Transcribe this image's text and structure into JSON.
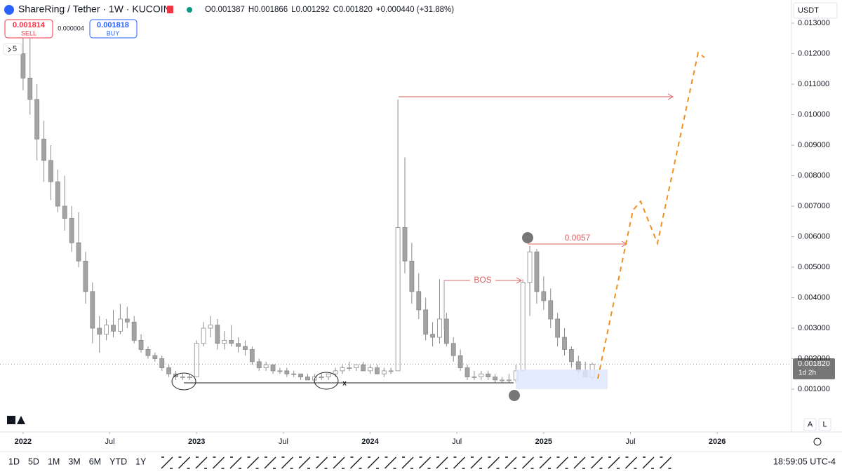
{
  "header": {
    "symbol": "ShareRing / Tether · 1W · KUCOIN",
    "legend": [
      {
        "label": "O",
        "value": "0.001387"
      },
      {
        "label": "H",
        "value": "0.001866"
      },
      {
        "label": "L",
        "value": "0.001292"
      },
      {
        "label": "C",
        "value": "0.001820"
      },
      {
        "label": "+0.000440 (+31.88%)"
      }
    ],
    "sell": {
      "price": "0.001814",
      "label": "SELL"
    },
    "spread": "0.000004",
    "buy": {
      "price": "0.001818",
      "label": "BUY"
    },
    "count": "5"
  },
  "currency": "USDT",
  "price_tag": {
    "price": "0.001820",
    "countdown": "1d 2h"
  },
  "axis_buttons": [
    "A",
    "L"
  ],
  "timeframes": [
    "1D",
    "5D",
    "1M",
    "3M",
    "6M",
    "YTD",
    "1Y"
  ],
  "clock": "18:59:05 UTC-4",
  "annotations": {
    "bos": "BOS",
    "target": "0.0057",
    "cross": "x"
  },
  "chart_data": {
    "type": "candlestick",
    "up_color": "#ffffff",
    "down_color": "#a3a3a3",
    "wick_color": "#8a8a8a",
    "x": [
      2022.0,
      2022.04,
      2022.08,
      2022.12,
      2022.16,
      2022.2,
      2022.24,
      2022.28,
      2022.32,
      2022.36,
      2022.4,
      2022.44,
      2022.48,
      2022.52,
      2022.56,
      2022.6,
      2022.64,
      2022.68,
      2022.72,
      2022.76,
      2022.8,
      2022.84,
      2022.88,
      2022.92,
      2022.96,
      2023.0,
      2023.04,
      2023.08,
      2023.12,
      2023.16,
      2023.2,
      2023.24,
      2023.28,
      2023.32,
      2023.36,
      2023.4,
      2023.44,
      2023.48,
      2023.52,
      2023.56,
      2023.6,
      2023.64,
      2023.68,
      2023.72,
      2023.76,
      2023.8,
      2023.84,
      2023.88,
      2023.92,
      2023.96,
      2024.0,
      2024.04,
      2024.08,
      2024.12,
      2024.16,
      2024.2,
      2024.24,
      2024.28,
      2024.32,
      2024.36,
      2024.4,
      2024.44,
      2024.48,
      2024.52,
      2024.56,
      2024.6,
      2024.64,
      2024.68,
      2024.72,
      2024.76,
      2024.8,
      2024.84,
      2024.88,
      2024.92,
      2024.96,
      2025.0,
      2025.04,
      2025.08,
      2025.12,
      2025.16,
      2025.2,
      2025.24,
      2025.28
    ],
    "open": [
      0.012,
      0.0112,
      0.0105,
      0.0092,
      0.0085,
      0.0078,
      0.007,
      0.0066,
      0.0058,
      0.0052,
      0.0042,
      0.003,
      0.0028,
      0.0031,
      0.0029,
      0.0033,
      0.0032,
      0.0026,
      0.0023,
      0.0021,
      0.002,
      0.0017,
      0.0015,
      0.0014,
      0.0014,
      0.0014,
      0.0025,
      0.003,
      0.0031,
      0.0025,
      0.0026,
      0.0025,
      0.0024,
      0.0023,
      0.0019,
      0.0017,
      0.0018,
      0.0016,
      0.0016,
      0.0015,
      0.0015,
      0.0014,
      0.0013,
      0.0014,
      0.0014,
      0.0015,
      0.0016,
      0.0017,
      0.0017,
      0.0018,
      0.0016,
      0.0017,
      0.0015,
      0.0016,
      0.0016,
      0.0063,
      0.0052,
      0.0042,
      0.0036,
      0.0028,
      0.0027,
      0.0033,
      0.0025,
      0.0021,
      0.0017,
      0.0014,
      0.0014,
      0.0015,
      0.0014,
      0.0013,
      0.0013,
      0.0013,
      0.0016,
      0.0045,
      0.0055,
      0.0042,
      0.0039,
      0.0033,
      0.0027,
      0.0023,
      0.0019,
      0.0016,
      0.001387
    ],
    "high": [
      0.0128,
      0.0125,
      0.011,
      0.0098,
      0.009,
      0.0082,
      0.008,
      0.007,
      0.0068,
      0.0055,
      0.0045,
      0.0034,
      0.0033,
      0.0036,
      0.0038,
      0.0037,
      0.0034,
      0.0028,
      0.0024,
      0.0022,
      0.0021,
      0.0018,
      0.0016,
      0.0015,
      0.0015,
      0.0026,
      0.0032,
      0.0034,
      0.0033,
      0.0029,
      0.0031,
      0.0027,
      0.0026,
      0.0024,
      0.002,
      0.0019,
      0.0018,
      0.0017,
      0.0017,
      0.0016,
      0.0015,
      0.0015,
      0.0015,
      0.0015,
      0.0015,
      0.0017,
      0.0018,
      0.0019,
      0.0018,
      0.0019,
      0.0018,
      0.0018,
      0.0017,
      0.0017,
      0.0105,
      0.0086,
      0.0058,
      0.0048,
      0.004,
      0.0032,
      0.0046,
      0.0035,
      0.0027,
      0.0023,
      0.0018,
      0.0016,
      0.0016,
      0.0016,
      0.0015,
      0.0014,
      0.0015,
      0.0018,
      0.0046,
      0.0057,
      0.0056,
      0.0047,
      0.0043,
      0.0035,
      0.003,
      0.0024,
      0.0021,
      0.0019,
      0.001866
    ],
    "low": [
      0.0108,
      0.01,
      0.0085,
      0.0078,
      0.0072,
      0.0068,
      0.0062,
      0.0055,
      0.005,
      0.0038,
      0.0025,
      0.0022,
      0.0026,
      0.0027,
      0.0028,
      0.003,
      0.0025,
      0.0022,
      0.002,
      0.0019,
      0.0016,
      0.0014,
      0.0013,
      0.0013,
      0.0013,
      0.0014,
      0.0024,
      0.0027,
      0.0023,
      0.0023,
      0.0024,
      0.0022,
      0.0021,
      0.0018,
      0.0016,
      0.0016,
      0.0015,
      0.0015,
      0.0014,
      0.0014,
      0.0013,
      0.0013,
      0.0012,
      0.0013,
      0.0013,
      0.0014,
      0.0015,
      0.0016,
      0.0016,
      0.0016,
      0.0015,
      0.0015,
      0.0014,
      0.0015,
      0.0016,
      0.0048,
      0.0038,
      0.0033,
      0.0026,
      0.0024,
      0.0025,
      0.0024,
      0.0019,
      0.0016,
      0.0013,
      0.0013,
      0.0013,
      0.0013,
      0.0012,
      0.0012,
      0.0012,
      0.0012,
      0.0016,
      0.0034,
      0.0038,
      0.0036,
      0.003,
      0.0024,
      0.0021,
      0.0017,
      0.0015,
      0.0014,
      0.001292
    ],
    "close": [
      0.0112,
      0.0105,
      0.0092,
      0.0085,
      0.0078,
      0.007,
      0.0066,
      0.0058,
      0.0052,
      0.0042,
      0.003,
      0.0028,
      0.0031,
      0.0029,
      0.0033,
      0.0032,
      0.0026,
      0.0023,
      0.0021,
      0.002,
      0.0017,
      0.0015,
      0.0014,
      0.0014,
      0.0014,
      0.0025,
      0.003,
      0.0031,
      0.0025,
      0.0026,
      0.0025,
      0.0024,
      0.0023,
      0.0019,
      0.0017,
      0.0018,
      0.0016,
      0.0016,
      0.0015,
      0.0015,
      0.0014,
      0.0013,
      0.0014,
      0.0014,
      0.0015,
      0.0016,
      0.0017,
      0.0017,
      0.0018,
      0.0016,
      0.0017,
      0.0015,
      0.0016,
      0.0016,
      0.0063,
      0.0052,
      0.0042,
      0.0036,
      0.0028,
      0.0027,
      0.0033,
      0.0025,
      0.0021,
      0.0017,
      0.0014,
      0.0014,
      0.0015,
      0.0014,
      0.0013,
      0.0013,
      0.0013,
      0.0016,
      0.0045,
      0.0055,
      0.0042,
      0.0039,
      0.0033,
      0.0027,
      0.0023,
      0.0019,
      0.0016,
      0.0014,
      0.00182
    ],
    "xlim": [
      2021.867,
      2026.428
    ],
    "xticks": [
      2022,
      {
        "value": 2022.5,
        "label": "Jul"
      },
      2023,
      {
        "value": 2023.5,
        "label": "Jul"
      },
      2024,
      {
        "value": 2024.5,
        "label": "Jul"
      },
      2025,
      {
        "value": 2025.5,
        "label": "Jul"
      },
      2026
    ],
    "ylim": [
      -0.00038,
      0.01376
    ],
    "yticks": [
      {
        "value": 0.001,
        "label": "0.001000"
      },
      {
        "value": 0.002,
        "label": "0.002000"
      },
      {
        "value": 0.003,
        "label": "0.003000"
      },
      {
        "value": 0.004,
        "label": "0.004000"
      },
      {
        "value": 0.005,
        "label": "0.005000"
      },
      {
        "value": 0.006,
        "label": "0.006000"
      },
      {
        "value": 0.007,
        "label": "0.007000"
      },
      {
        "value": 0.008,
        "label": "0.008000"
      },
      {
        "value": 0.009,
        "label": "0.009000"
      },
      {
        "value": 0.01,
        "label": "0.010000"
      },
      {
        "value": 0.011,
        "label": "0.011000"
      },
      {
        "value": 0.012,
        "label": "0.012000"
      },
      {
        "value": 0.013,
        "label": "0.013000"
      }
    ]
  }
}
